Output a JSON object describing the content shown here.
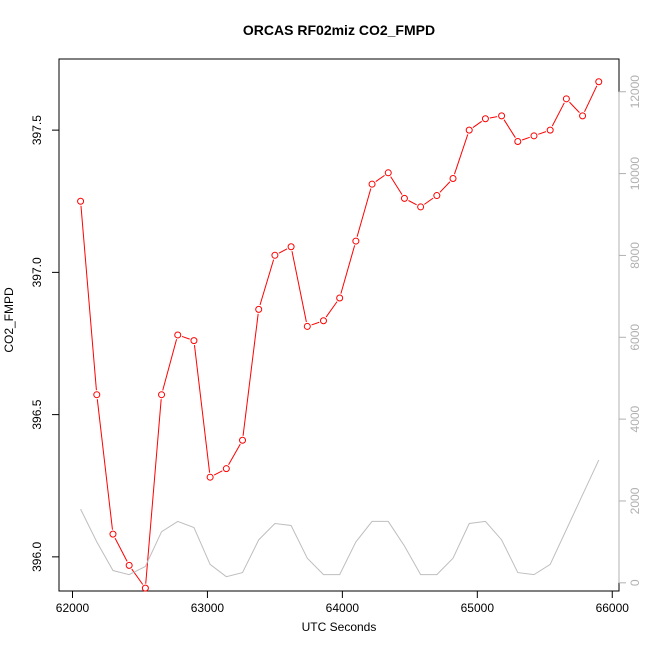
{
  "chart_data": {
    "type": "line",
    "title": "ORCAS RF02miz CO2_FMPD",
    "xlabel": "UTC Seconds",
    "ylabel": "CO2_FMPD",
    "y2label": "",
    "xlim": [
      61900,
      66050
    ],
    "ylim": [
      395.88,
      397.75
    ],
    "y2lim": [
      -200,
      12800
    ],
    "x_ticks": [
      62000,
      63000,
      64000,
      65000,
      66000
    ],
    "y_ticks": [
      396.0,
      396.5,
      397.0,
      397.5
    ],
    "y_tick_labels": [
      "396.0",
      "396.5",
      "397.0",
      "397.5"
    ],
    "y2_ticks": [
      0,
      2000,
      4000,
      6000,
      8000,
      10000,
      12000
    ],
    "grid": false,
    "colors": {
      "primary": "#ff0000",
      "secondary": "#bebebe",
      "axes": "#000000",
      "right_axis": "#b0b0b0"
    },
    "series": [
      {
        "axis": "left",
        "marker": "open-circle",
        "x": [
          62060,
          62180,
          62300,
          62420,
          62540,
          62660,
          62780,
          62900,
          63020,
          63140,
          63260,
          63380,
          63500,
          63620,
          63740,
          63860,
          63980,
          64100,
          64220,
          64340,
          64460,
          64580,
          64700,
          64820,
          64940,
          65060,
          65180,
          65300,
          65420,
          65540,
          65660,
          65780,
          65900
        ],
        "values": [
          397.25,
          396.57,
          396.08,
          395.97,
          395.89,
          396.57,
          396.78,
          396.76,
          396.28,
          396.31,
          396.41,
          396.87,
          397.06,
          397.09,
          396.81,
          396.83,
          396.91,
          397.11,
          397.31,
          397.35,
          397.26,
          397.23,
          397.27,
          397.33,
          397.5,
          397.54,
          397.55,
          397.46,
          397.48,
          397.5,
          397.61,
          397.55,
          397.67
        ]
      },
      {
        "axis": "right",
        "marker": "none",
        "x": [
          62060,
          62180,
          62300,
          62420,
          62540,
          62660,
          62780,
          62900,
          63020,
          63140,
          63260,
          63380,
          63500,
          63620,
          63740,
          63860,
          63980,
          64100,
          64220,
          64340,
          64460,
          64580,
          64700,
          64820,
          64940,
          65060,
          65180,
          65300,
          65420,
          65540,
          65660,
          65780,
          65900
        ],
        "values": [
          1800,
          1000,
          300,
          200,
          400,
          1250,
          1500,
          1350,
          450,
          150,
          250,
          1050,
          1450,
          1400,
          600,
          200,
          200,
          1000,
          1500,
          1500,
          900,
          200,
          200,
          600,
          1450,
          1500,
          1050,
          250,
          200,
          450,
          1300,
          2150,
          3000
        ]
      }
    ]
  }
}
